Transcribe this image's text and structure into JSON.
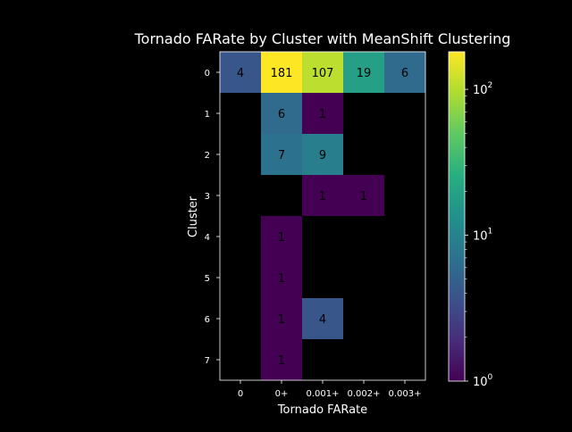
{
  "chart_data": {
    "type": "heatmap",
    "title": "Tornado FARate by Cluster with MeanShift Clustering",
    "xlabel": "Tornado FARate",
    "ylabel": "Cluster",
    "x_categories": [
      "0",
      "0+",
      "0.001+",
      "0.002+",
      "0.003+"
    ],
    "y_categories": [
      "0",
      "1",
      "2",
      "3",
      "4",
      "5",
      "6",
      "7"
    ],
    "values": [
      [
        4,
        181,
        107,
        19,
        6
      ],
      [
        null,
        6,
        1,
        null,
        null
      ],
      [
        null,
        7,
        9,
        null,
        null
      ],
      [
        null,
        null,
        1,
        1,
        null
      ],
      [
        null,
        1,
        null,
        null,
        null
      ],
      [
        null,
        1,
        null,
        null,
        null
      ],
      [
        null,
        1,
        4,
        null,
        null
      ],
      [
        null,
        1,
        null,
        null,
        null
      ]
    ],
    "colorbar": {
      "scale": "log",
      "colormap": "viridis",
      "min": 1,
      "max": 181,
      "ticks": [
        {
          "value": 1,
          "base": "10",
          "exp": "0"
        },
        {
          "value": 10,
          "base": "10",
          "exp": "1"
        },
        {
          "value": 100,
          "base": "10",
          "exp": "2"
        }
      ]
    },
    "background": "#000000",
    "text_color": "#ffffff"
  }
}
